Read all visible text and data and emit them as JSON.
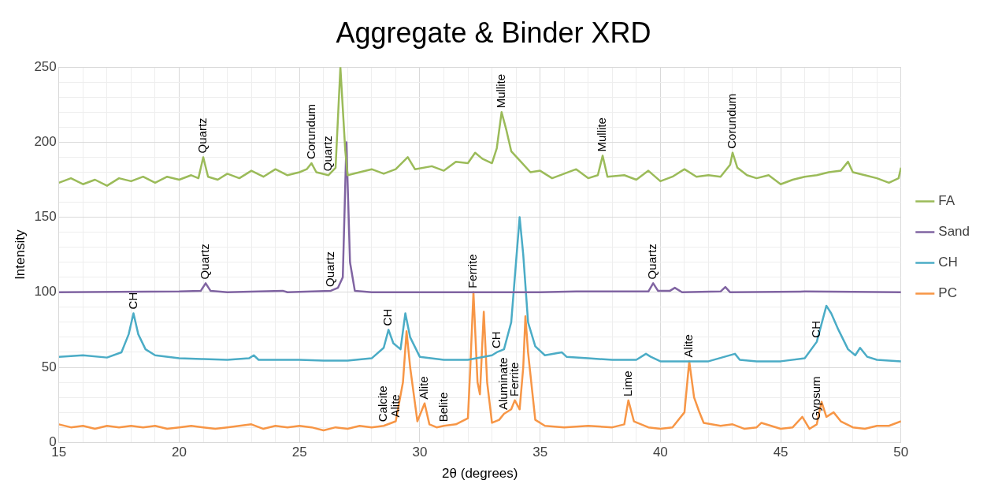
{
  "chart_data": {
    "type": "line",
    "title": "Aggregate & Binder XRD",
    "xlabel": "2θ (degrees)",
    "ylabel": "Intensity",
    "legend": "right",
    "grid": true,
    "xlim": [
      15,
      50
    ],
    "xticks": [
      15,
      {
        "value": 16,
        "label": null
      },
      {
        "value": 17,
        "label": null
      },
      {
        "value": 18,
        "label": null
      },
      {
        "value": 19,
        "label": null
      },
      20,
      {
        "value": 21,
        "label": null
      },
      {
        "value": 22,
        "label": null
      },
      {
        "value": 23,
        "label": null
      },
      {
        "value": 24,
        "label": null
      },
      25,
      {
        "value": 26,
        "label": null
      },
      {
        "value": 27,
        "label": null
      },
      {
        "value": 28,
        "label": null
      },
      {
        "value": 29,
        "label": null
      },
      30,
      {
        "value": 31,
        "label": null
      },
      {
        "value": 32,
        "label": null
      },
      {
        "value": 33,
        "label": null
      },
      {
        "value": 34,
        "label": null
      },
      35,
      {
        "value": 36,
        "label": null
      },
      {
        "value": 37,
        "label": null
      },
      {
        "value": 38,
        "label": null
      },
      {
        "value": 39,
        "label": null
      },
      40,
      {
        "value": 41,
        "label": null
      },
      {
        "value": 42,
        "label": null
      },
      {
        "value": 43,
        "label": null
      },
      {
        "value": 44,
        "label": null
      },
      45,
      {
        "value": 46,
        "label": null
      },
      {
        "value": 47,
        "label": null
      },
      {
        "value": 48,
        "label": null
      },
      {
        "value": 49,
        "label": null
      },
      50
    ],
    "ylim": [
      0,
      250
    ],
    "yticks": [
      0,
      {
        "value": 10,
        "label": null
      },
      {
        "value": 20,
        "label": null
      },
      {
        "value": 30,
        "label": null
      },
      {
        "value": 40,
        "label": null
      },
      50,
      {
        "value": 60,
        "label": null
      },
      {
        "value": 70,
        "label": null
      },
      {
        "value": 80,
        "label": null
      },
      {
        "value": 90,
        "label": null
      },
      100,
      {
        "value": 110,
        "label": null
      },
      {
        "value": 120,
        "label": null
      },
      {
        "value": 130,
        "label": null
      },
      {
        "value": 140,
        "label": null
      },
      150,
      {
        "value": 160,
        "label": null
      },
      {
        "value": 170,
        "label": null
      },
      {
        "value": 180,
        "label": null
      },
      {
        "value": 190,
        "label": null
      },
      200,
      {
        "value": 210,
        "label": null
      },
      {
        "value": 220,
        "label": null
      },
      {
        "value": 230,
        "label": null
      },
      {
        "value": 240,
        "label": null
      },
      250
    ],
    "series": [
      {
        "name": "FA",
        "color": "#9bbb59",
        "x": [
          15,
          15.5,
          16,
          16.5,
          17,
          17.5,
          18,
          18.5,
          19,
          19.5,
          20,
          20.5,
          20.8,
          21.0,
          21.2,
          21.6,
          22,
          22.5,
          23,
          23.5,
          24,
          24.5,
          25,
          25.3,
          25.5,
          25.7,
          26.2,
          26.5,
          26.7,
          26.9,
          27.0,
          27.5,
          28,
          28.5,
          29,
          29.5,
          29.8,
          30.5,
          31,
          31.5,
          32,
          32.3,
          32.6,
          33,
          33.2,
          33.4,
          33.6,
          33.8,
          34.2,
          34.6,
          35,
          35.5,
          36,
          36.5,
          37,
          37.4,
          37.6,
          37.8,
          38.5,
          39,
          39.5,
          40,
          40.5,
          41,
          41.5,
          42,
          42.5,
          42.9,
          43.0,
          43.2,
          43.6,
          44,
          44.5,
          45,
          45.5,
          46,
          46.5,
          47,
          47.5,
          47.8,
          48,
          48.5,
          49,
          49.5,
          49.9,
          50
        ],
        "values": [
          173,
          176,
          172,
          175,
          171,
          176,
          174,
          177,
          173,
          177,
          175,
          178,
          176,
          190,
          177,
          175,
          179,
          176,
          181,
          177,
          182,
          178,
          180,
          182,
          186,
          180,
          178,
          183,
          250,
          195,
          178,
          180,
          182,
          179,
          182,
          190,
          182,
          184,
          181,
          187,
          186,
          193,
          189,
          186,
          196,
          220,
          208,
          194,
          187,
          180,
          181,
          176,
          179,
          182,
          176,
          178,
          191,
          177,
          178,
          175,
          181,
          174,
          177,
          182,
          177,
          178,
          177,
          185,
          193,
          183,
          178,
          176,
          178,
          172,
          175,
          177,
          178,
          180,
          181,
          187,
          180,
          178,
          176,
          173,
          176,
          183
        ]
      },
      {
        "name": "Sand",
        "color": "#8064a2",
        "x": [
          15,
          20,
          20.9,
          21.1,
          21.3,
          22,
          24.3,
          24.5,
          26.3,
          26.6,
          26.8,
          26.95,
          27.1,
          27.3,
          28,
          30,
          35,
          36.5,
          39.5,
          39.7,
          39.9,
          40.4,
          40.6,
          40.9,
          42.5,
          42.7,
          42.9,
          46,
          50
        ],
        "values": [
          100,
          100.5,
          101,
          106,
          101,
          100,
          101,
          100,
          101,
          103,
          110,
          200,
          120,
          101,
          100,
          100,
          100,
          100.5,
          100.5,
          106,
          101,
          101,
          103,
          100,
          100.5,
          103.5,
          100,
          100.5,
          100
        ]
      },
      {
        "name": "CH",
        "color": "#4bacc6",
        "x": [
          15,
          16,
          17,
          17.6,
          17.9,
          18.1,
          18.3,
          18.6,
          19,
          20,
          21,
          22,
          22.9,
          23.1,
          23.3,
          24,
          25,
          26,
          27,
          28,
          28.5,
          28.7,
          28.9,
          29.2,
          29.4,
          29.6,
          30,
          31,
          32,
          33,
          33.2,
          33.5,
          33.8,
          34.0,
          34.15,
          34.3,
          34.5,
          34.8,
          35.2,
          35.9,
          36.1,
          37,
          38,
          39,
          39.4,
          39.6,
          40,
          41,
          42,
          43.1,
          43.3,
          44,
          45,
          46,
          46.5,
          46.9,
          47.1,
          47.4,
          47.8,
          48.1,
          48.3,
          48.6,
          49,
          50
        ],
        "values": [
          57,
          58,
          56.5,
          60,
          72,
          86,
          72,
          62,
          58,
          56,
          55.5,
          55,
          56,
          58,
          55,
          55,
          55,
          54.5,
          54.5,
          56,
          63,
          75,
          66,
          62,
          86,
          70,
          57,
          55,
          55,
          58,
          60,
          62,
          80,
          120,
          150,
          125,
          80,
          64,
          58,
          60,
          57,
          56,
          55,
          55,
          59,
          57,
          54,
          54,
          54,
          59,
          55,
          54,
          54,
          56,
          67,
          91,
          86,
          75,
          62,
          58,
          63,
          57,
          55,
          54
        ]
      },
      {
        "name": "PC",
        "color": "#f79646",
        "x": [
          15,
          15.5,
          16,
          16.5,
          17,
          17.5,
          18,
          18.5,
          19,
          19.5,
          20,
          20.5,
          21,
          21.5,
          22,
          23,
          23.5,
          24,
          24.5,
          25,
          25.5,
          26,
          26.5,
          27,
          27.5,
          28,
          28.5,
          29,
          29.3,
          29.45,
          29.6,
          29.9,
          30.2,
          30.4,
          30.7,
          31,
          31.5,
          32,
          32.1,
          32.23,
          32.4,
          32.5,
          32.66,
          32.8,
          33,
          33.3,
          33.5,
          33.8,
          33.95,
          34.15,
          34.3,
          34.39,
          34.5,
          34.8,
          35.2,
          36,
          37,
          38,
          38.5,
          38.67,
          38.9,
          39.5,
          40,
          40.5,
          41.0,
          41.2,
          41.4,
          41.6,
          41.8,
          42.5,
          43,
          43.5,
          44,
          44.2,
          45,
          45.5,
          45.9,
          46.2,
          46.5,
          46.7,
          46.9,
          47.2,
          47.5,
          48,
          48.5,
          49,
          49.5,
          50
        ],
        "values": [
          12,
          10,
          11,
          9,
          11,
          10,
          11,
          10,
          11,
          9,
          10,
          11,
          10,
          9,
          10,
          12,
          9,
          11,
          10,
          11,
          10,
          8,
          10,
          9,
          11,
          10,
          11,
          14,
          40,
          74,
          50,
          14,
          26,
          12,
          10,
          11,
          12,
          16,
          50,
          100,
          40,
          32,
          87,
          40,
          13,
          15,
          19,
          22,
          28,
          22,
          50,
          84,
          60,
          15,
          11,
          10,
          11,
          10,
          12,
          28,
          14,
          10,
          9,
          10,
          20,
          54,
          30,
          21,
          13,
          11,
          12,
          9,
          10,
          13,
          9,
          10,
          17,
          9,
          12,
          27,
          17,
          20,
          14,
          10,
          9,
          11,
          11,
          14
        ]
      }
    ],
    "annotations": [
      {
        "text": "Quartz",
        "x": 21.0,
        "y": 190
      },
      {
        "text": "Corundum",
        "x": 25.5,
        "y": 186
      },
      {
        "text": "Quartz",
        "x": 26.2,
        "y": 178
      },
      {
        "text": "Mullite",
        "x": 33.4,
        "y": 220
      },
      {
        "text": "Mullite",
        "x": 37.6,
        "y": 191
      },
      {
        "text": "Corundum",
        "x": 43.0,
        "y": 193
      },
      {
        "text": "Quartz",
        "x": 21.1,
        "y": 106
      },
      {
        "text": "Quartz",
        "x": 26.3,
        "y": 101
      },
      {
        "text": "Quartz",
        "x": 39.7,
        "y": 106
      },
      {
        "text": "CH",
        "x": 18.1,
        "y": 86
      },
      {
        "text": "CH",
        "x": 28.7,
        "y": 75
      },
      {
        "text": "CH",
        "x": 33.2,
        "y": 60
      },
      {
        "text": "CH",
        "x": 46.5,
        "y": 67
      },
      {
        "text": "Calcite",
        "x": 28.5,
        "y": 11
      },
      {
        "text": "Alite",
        "x": 29,
        "y": 14
      },
      {
        "text": "Alite",
        "x": 30.2,
        "y": 26
      },
      {
        "text": "Belite",
        "x": 31,
        "y": 11
      },
      {
        "text": "Ferrite",
        "x": 32.23,
        "y": 100
      },
      {
        "text": "Aluminate",
        "x": 33.5,
        "y": 19
      },
      {
        "text": "Ferrite",
        "x": 33.95,
        "y": 28
      },
      {
        "text": "Lime",
        "x": 38.67,
        "y": 28
      },
      {
        "text": "Alite",
        "x": 41.2,
        "y": 54
      },
      {
        "text": "Gypsum",
        "x": 46.5,
        "y": 12
      }
    ]
  }
}
